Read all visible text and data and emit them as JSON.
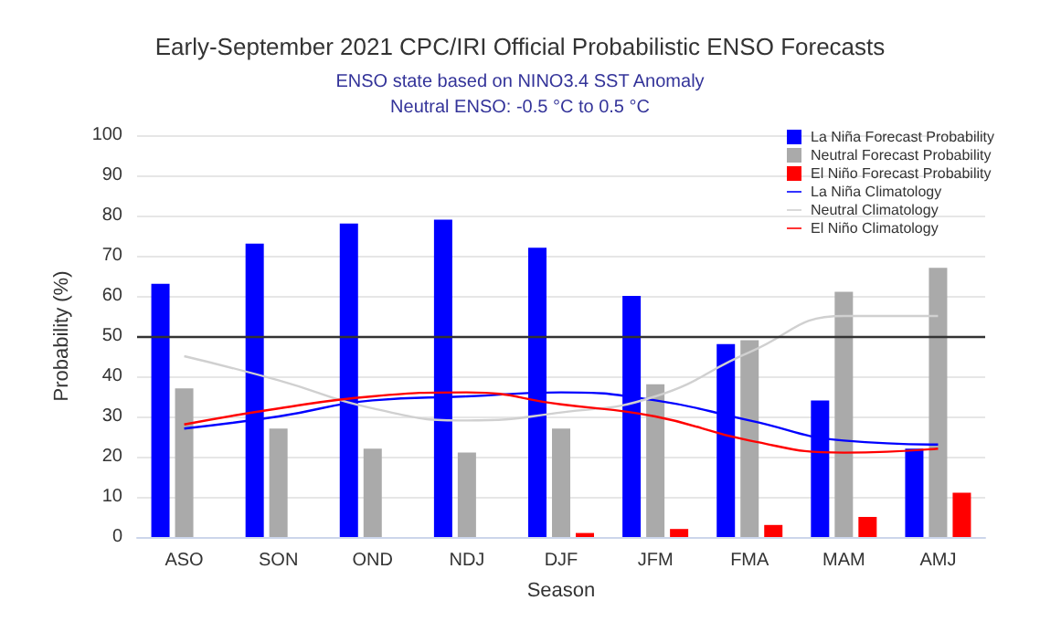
{
  "chart_data": {
    "type": "bar",
    "title": "Early-September 2021 CPC/IRI Official Probabilistic ENSO Forecasts",
    "subtitle": "ENSO state based on NINO3.4 SST Anomaly\nNeutral ENSO: -0.5 °C to 0.5 °C",
    "xlabel": "Season",
    "ylabel": "Probability (%)",
    "categories": [
      "ASO",
      "SON",
      "OND",
      "NDJ",
      "DJF",
      "JFM",
      "FMA",
      "MAM",
      "AMJ"
    ],
    "series": [
      {
        "name": "La Niña Forecast Probability",
        "color": "#0000ff",
        "values": [
          63,
          73,
          78,
          79,
          72,
          60,
          48,
          34,
          22
        ]
      },
      {
        "name": "Neutral Forecast Probability",
        "color": "#aaaaaa",
        "values": [
          37,
          27,
          22,
          21,
          27,
          38,
          49,
          61,
          67
        ]
      },
      {
        "name": "El Niño Forecast Probability",
        "color": "#ff0000",
        "values": [
          0,
          0,
          0,
          0,
          1,
          2,
          3,
          5,
          11
        ]
      },
      {
        "name": "La Niña Climatology",
        "type": "line",
        "color": "#0000ff",
        "values": [
          27,
          30,
          34,
          35,
          36,
          34,
          29,
          24,
          23
        ]
      },
      {
        "name": "Neutral Climatology",
        "type": "line",
        "color": "#d0d0d0",
        "values": [
          45,
          39,
          32,
          29,
          31,
          35,
          46,
          55,
          55
        ]
      },
      {
        "name": "El Niño Climatology",
        "type": "line",
        "color": "#ff0000",
        "values": [
          28,
          32,
          35,
          36,
          33,
          30,
          24,
          21,
          22
        ]
      }
    ],
    "ylim": [
      0,
      100
    ],
    "yticks": [
      0,
      10,
      20,
      30,
      40,
      50,
      60,
      70,
      80,
      90,
      100
    ],
    "grid": "y",
    "legend": "top right",
    "marker": "none",
    "line_style": "solid",
    "ref_lines": [
      {
        "axis": "y",
        "value": 50,
        "color": "#333333"
      }
    ]
  }
}
